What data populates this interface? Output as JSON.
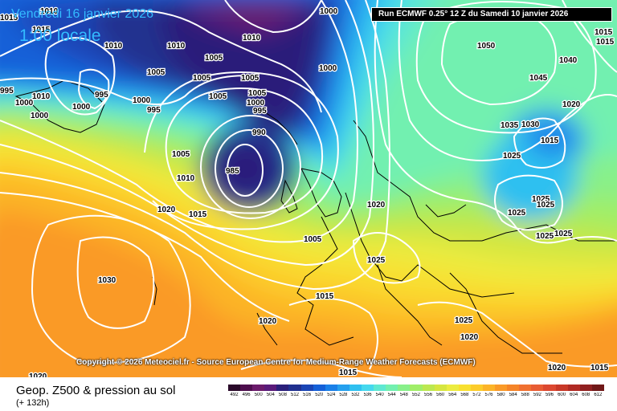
{
  "header": {
    "date_title": "Vendredi 16 janvier 2026",
    "time_title": "1:00 locale",
    "run_info": "Run ECMWF 0.25° 12 Z du Samedi 10 janvier 2026"
  },
  "copyright": "Copyright © 2026 Meteociel.fr - Source European Centre for Medium-Range Weather Forecasts (ECMWF)",
  "footer": {
    "param_name": "Geop. Z500 & pression au sol",
    "lead_time": "(+ 132h)"
  },
  "legend": {
    "values": [
      "492",
      "496",
      "500",
      "504",
      "508",
      "512",
      "516",
      "520",
      "524",
      "528",
      "532",
      "536",
      "540",
      "544",
      "548",
      "552",
      "556",
      "560",
      "564",
      "568",
      "572",
      "576",
      "580",
      "584",
      "588",
      "592",
      "596",
      "600",
      "604",
      "608",
      "612"
    ],
    "colors": [
      "#2a0a2a",
      "#4d0d4d",
      "#6b1a6b",
      "#5a1a7a",
      "#2a1f7a",
      "#20308f",
      "#1a45b5",
      "#1560d8",
      "#1a80e8",
      "#25a0ee",
      "#2fc0f0",
      "#45d8ee",
      "#5ee8d2",
      "#72f0b0",
      "#88f08a",
      "#a0ee68",
      "#bce850",
      "#d6e640",
      "#ecec40",
      "#f8e030",
      "#fccc2a",
      "#fcb428",
      "#fa9a28",
      "#f58428",
      "#f07030",
      "#e85c34",
      "#dc4830",
      "#c83828",
      "#b02a24",
      "#902020",
      "#701818"
    ]
  },
  "map": {
    "colors": {
      "z492": "#2a0a2a",
      "z496": "#4d0d4d",
      "z500": "#6b1a6b",
      "z504": "#5a1a7a",
      "z508": "#2a1f7a",
      "z512": "#20308f",
      "z516": "#1a45b5",
      "z520": "#1560d8",
      "z524": "#1a80e8",
      "z528": "#25a0ee",
      "z532": "#2fc0f0",
      "z536": "#45d8ee",
      "z540": "#5ee8d2",
      "z544": "#72f0b0",
      "z548": "#88f08a",
      "z552": "#a0ee68",
      "z556": "#bce850",
      "z560": "#d6e640",
      "z564": "#ecec40",
      "z568": "#f8e030",
      "z572": "#fccc2a",
      "z576": "#fcb428",
      "z580": "#fa9a28",
      "z584": "#f58428",
      "z588": "#f07030",
      "z592": "#e85c34",
      "isobar": "#ffffff",
      "coast": "#000000"
    },
    "isobar_labels": [
      "1010",
      "1015",
      "1010",
      "1010",
      "1010",
      "1000",
      "995",
      "1010",
      "1005",
      "1000",
      "1005",
      "1005",
      "1005",
      "1000",
      "995",
      "1005",
      "1005",
      "1000",
      "1000",
      "1000",
      "995",
      "1000",
      "995",
      "990",
      "985",
      "1005",
      "1010",
      "1015",
      "1020",
      "1005",
      "1030",
      "1020",
      "1015",
      "1025",
      "1020",
      "1025",
      "1015",
      "1020",
      "1015",
      "1020",
      "1015",
      "1050",
      "1040",
      "1045",
      "1020",
      "1035",
      "1030",
      "1015",
      "1025",
      "1025",
      "1025",
      "1025",
      "1025",
      "1025",
      "1020",
      "1015",
      "1015"
    ]
  }
}
